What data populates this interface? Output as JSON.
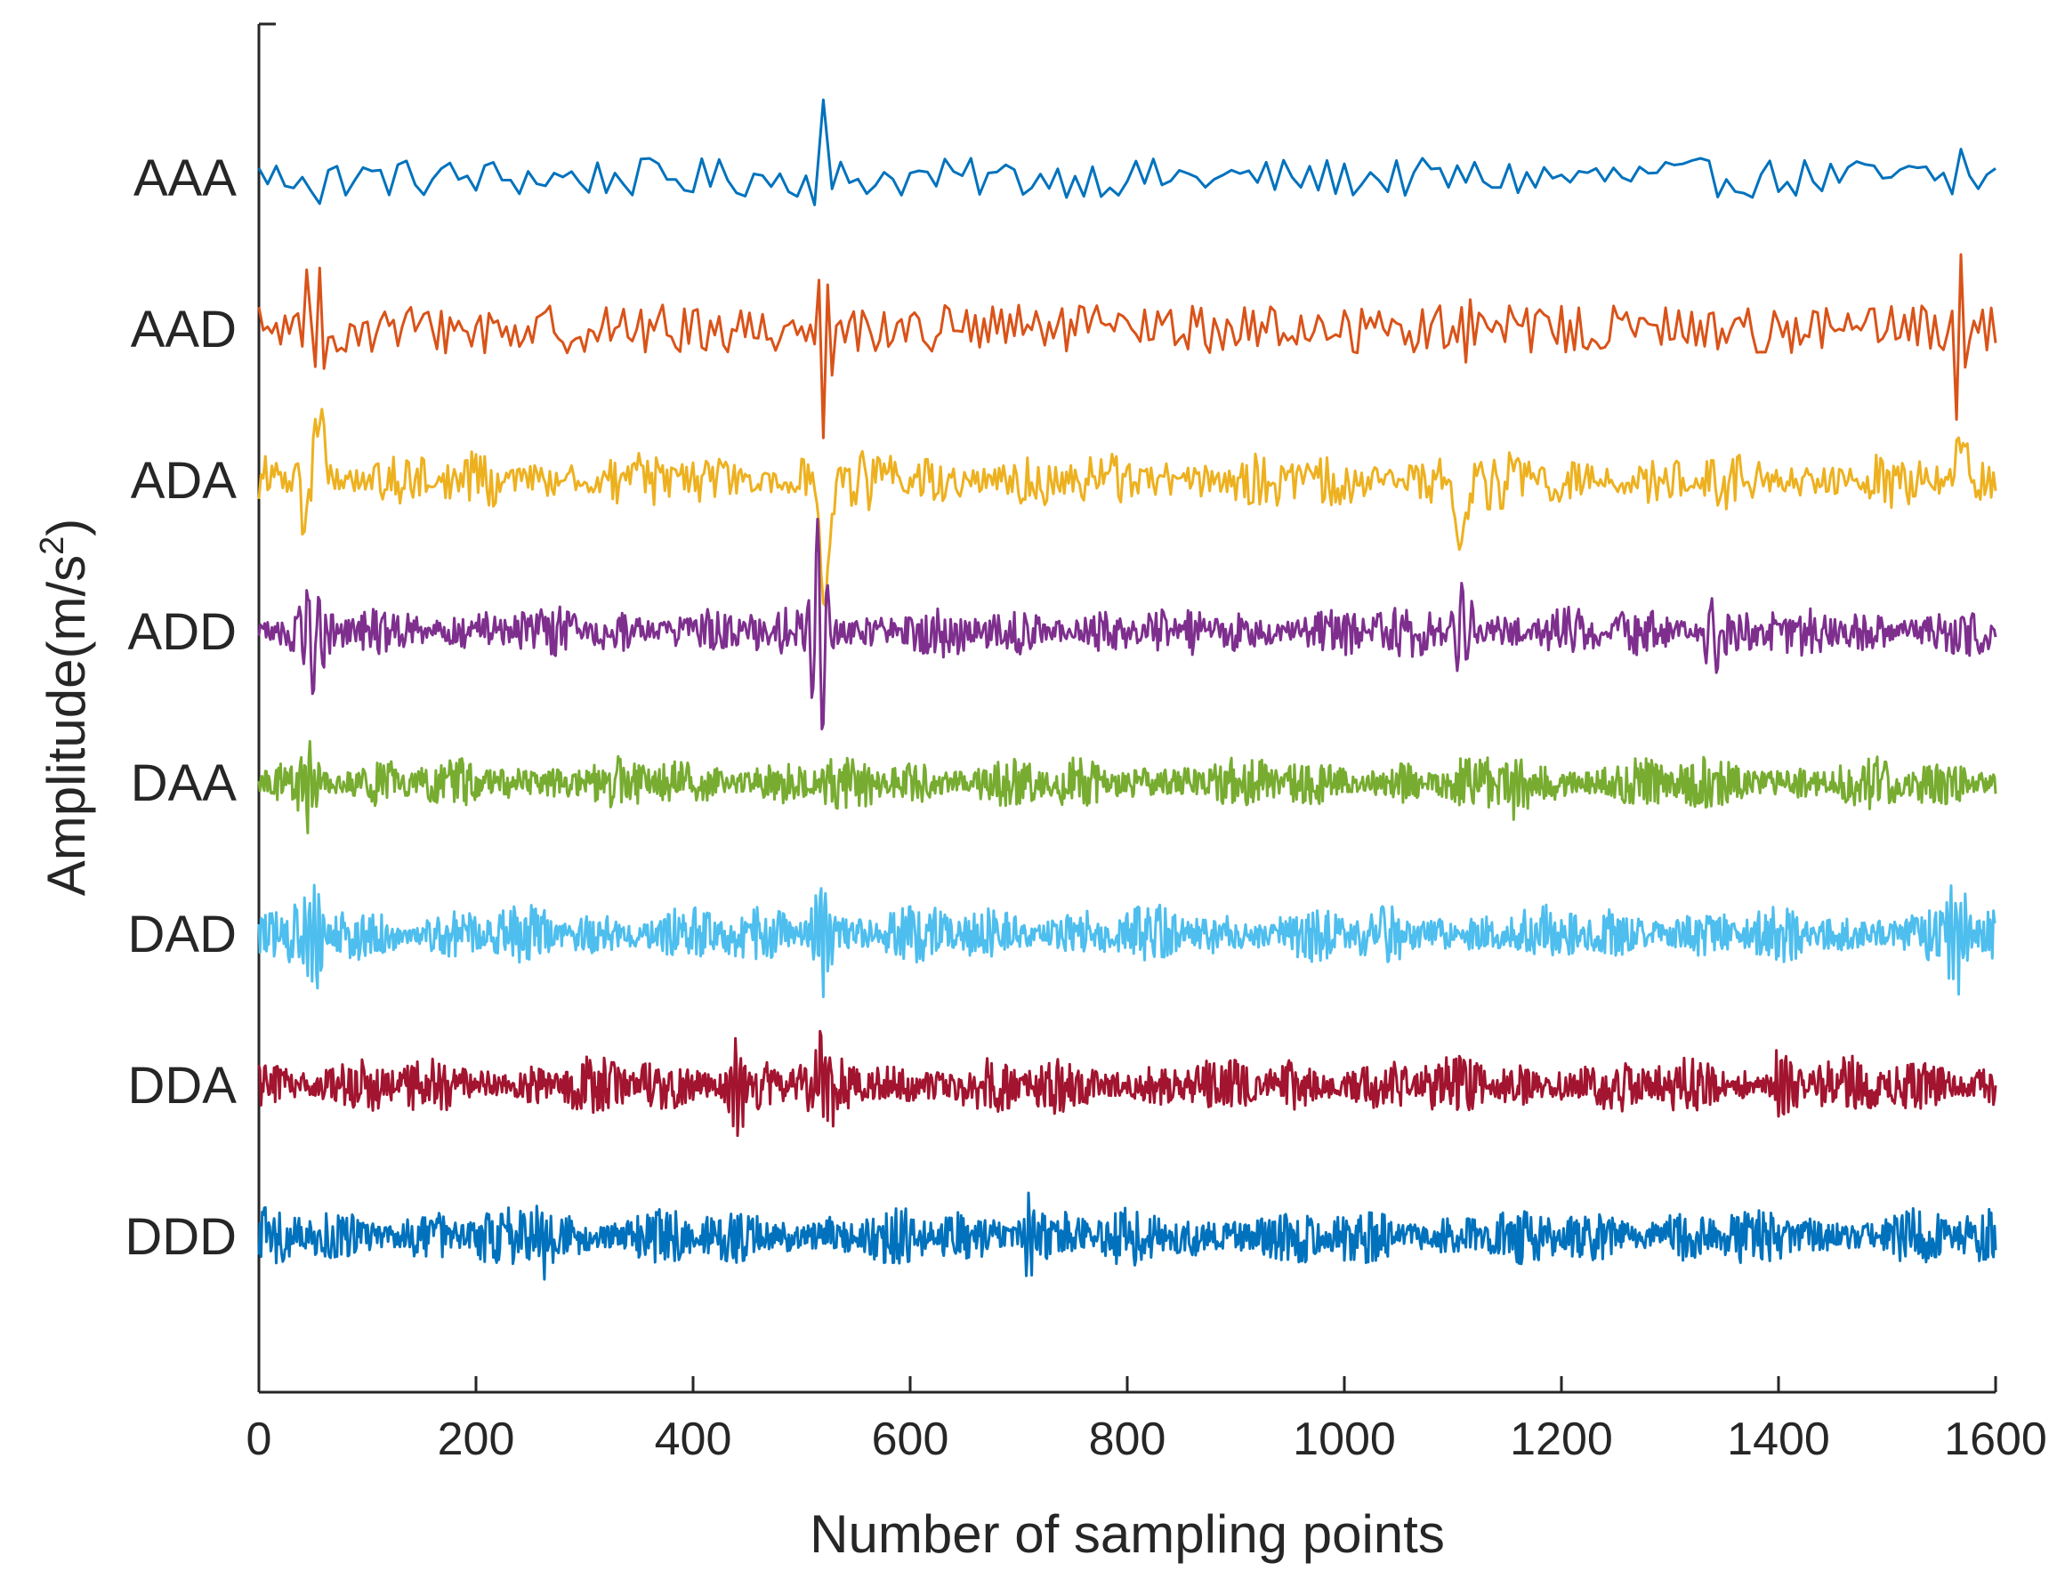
{
  "chart_data": {
    "type": "line",
    "title": "",
    "xlabel": "Number of sampling points",
    "ylabel": "Amplitude(m/s",
    "ylabel_superscript": "2",
    "ylabel_close": ")",
    "xlim": [
      0,
      1600
    ],
    "x_ticks": [
      0,
      200,
      400,
      600,
      800,
      1000,
      1200,
      1400,
      1600
    ],
    "grid": false,
    "legend": "none",
    "series": [
      {
        "name": "AAA",
        "color": "#0072BD",
        "points": 200,
        "amplitude": 0.13,
        "style": "smooth",
        "spikes": [
          [
            50,
            0.35
          ],
          [
            518,
            0.55
          ],
          [
            1565,
            0.2
          ]
        ]
      },
      {
        "name": "AAD",
        "color": "#D95319",
        "points": 400,
        "amplitude": 0.16,
        "style": "smooth",
        "spikes": [
          [
            50,
            0.85
          ],
          [
            518,
            0.75
          ],
          [
            1110,
            0.35
          ],
          [
            1565,
            0.6
          ]
        ]
      },
      {
        "name": "ADA",
        "color": "#EDB120",
        "points": 800,
        "amplitude": 0.2,
        "style": "dense",
        "spikes": [
          [
            50,
            0.85
          ],
          [
            520,
            0.85
          ],
          [
            1108,
            0.45
          ],
          [
            1565,
            0.35
          ]
        ]
      },
      {
        "name": "ADD",
        "color": "#7E2F8E",
        "points": 1200,
        "amplitude": 0.18,
        "style": "dense",
        "spikes": [
          [
            50,
            0.4
          ],
          [
            516,
            0.85
          ],
          [
            1110,
            0.35
          ],
          [
            1340,
            0.3
          ]
        ]
      },
      {
        "name": "DAA",
        "color": "#77AC30",
        "points": 1600,
        "amplitude": 0.18,
        "style": "dense",
        "spikes": [
          [
            45,
            0.3
          ],
          [
            1160,
            0.25
          ]
        ]
      },
      {
        "name": "DAD",
        "color": "#4DBEEE",
        "points": 1600,
        "amplitude": 0.2,
        "style": "dense",
        "spikes": [
          [
            52,
            0.45
          ],
          [
            520,
            0.4
          ],
          [
            1565,
            0.3
          ]
        ]
      },
      {
        "name": "DDA",
        "color": "#A2142F",
        "points": 1600,
        "amplitude": 0.2,
        "style": "dense",
        "spikes": [
          [
            520,
            0.35
          ],
          [
            440,
            0.3
          ],
          [
            1405,
            0.3
          ]
        ]
      },
      {
        "name": "DDD",
        "color": "#0072BD",
        "points": 1600,
        "amplitude": 0.2,
        "style": "dense",
        "spikes": [
          [
            262,
            0.25
          ],
          [
            710,
            0.25
          ]
        ]
      }
    ]
  }
}
